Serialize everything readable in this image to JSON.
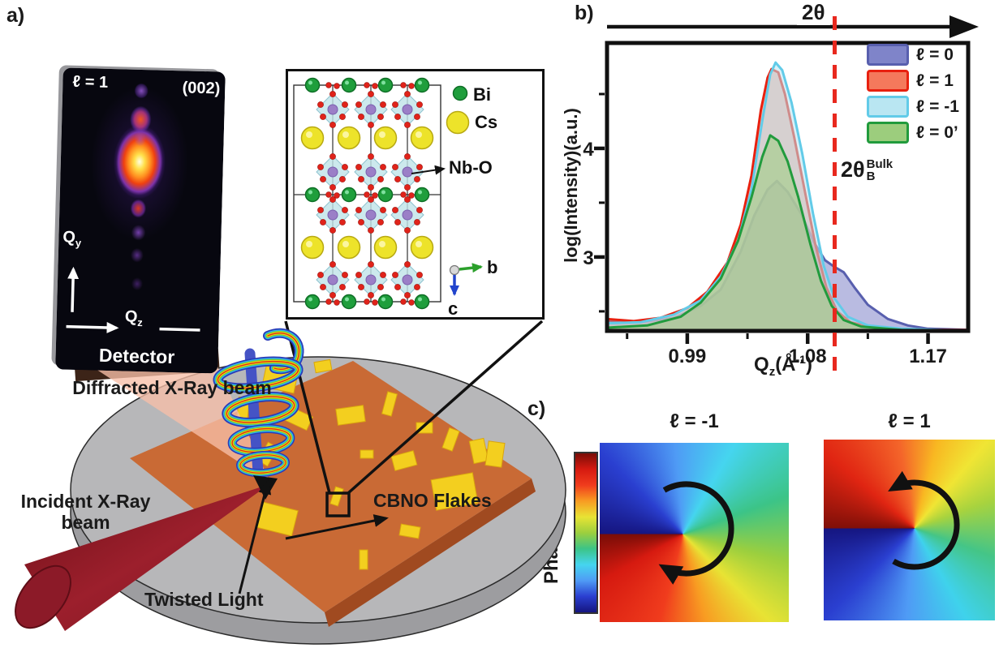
{
  "panels": {
    "a": {
      "label": "a)",
      "detector": {
        "name_label": "Detector",
        "mode_label": "ℓ = 1",
        "reflection_label": "(002)",
        "axis_vertical": {
          "base": "Q",
          "sub": "y"
        },
        "axis_horizontal": {
          "base": "Q",
          "sub": "z"
        }
      },
      "structure_inset": {
        "legend": [
          {
            "label": "Bi",
            "color": "#1f9e3c"
          },
          {
            "label": "Cs",
            "color": "#ede32a"
          }
        ],
        "octahedra_label": "Nb-O",
        "axis_b": "b",
        "axis_c": "c",
        "colors": {
          "octahedron": "#bfe3e8",
          "oxygen": "#e0231a",
          "niobium": "#9b7fc7"
        }
      },
      "labels": {
        "diffracted_beam": "Diffracted X-Ray beam",
        "incident_beam": "Incident X-Ray beam",
        "twisted_light": "Twisted Light",
        "flakes": "CBNO Flakes"
      },
      "colors": {
        "substrate": "#c96a35",
        "flake": "#f3cf1f",
        "stage": "#b7b7b9",
        "incident_beam": "#8c1a28",
        "diffracted_beam": "#f7bfa8"
      }
    },
    "b": {
      "label": "b)"
    },
    "c": {
      "label": "c)",
      "colorbar_label": "Phase(rad)",
      "colorbar_stops": [
        "#7a0d07",
        "#d61a10",
        "#f03c1d",
        "#f89c22",
        "#e8e334",
        "#9ccf3e",
        "#3cc487",
        "#45d5ef",
        "#4f9bf5",
        "#2a3fd0",
        "#151580"
      ],
      "maps": [
        {
          "title": "ℓ = -1",
          "rotation": "clockwise",
          "center": "44% 51%",
          "stops": [
            "#151580 0deg",
            "#2a3fd0 45deg",
            "#4f9bf5 85deg",
            "#45d5ef 120deg",
            "#3cc487 160deg",
            "#9ccf3e 195deg",
            "#e8e334 225deg",
            "#f89c22 255deg",
            "#f03c1d 285deg",
            "#d61a10 330deg",
            "#7a0d07 360deg"
          ]
        },
        {
          "title": "ℓ = 1",
          "rotation": "counterclockwise",
          "center": "53% 49%",
          "stops": [
            "#800f08 0deg",
            "#e02512 40deg",
            "#f4652a 80deg",
            "#f8b822 105deg",
            "#f0e534 130deg",
            "#a8d33e 160deg",
            "#44c587 200deg",
            "#3fd2ec 240deg",
            "#4f9bf5 275deg",
            "#2a3fd0 315deg",
            "#151580 360deg"
          ]
        }
      ]
    }
  },
  "chart_data": {
    "type": "area",
    "title": "",
    "top_axis_label": "2θ",
    "xlabel_parts": {
      "base": "Q",
      "sub": "z",
      "open": "(Å",
      "sup": "-1",
      "close": ")"
    },
    "ylabel": "log(Intensity)(a.u.)",
    "xlim": [
      0.93,
      1.2
    ],
    "ylim": [
      2.32,
      4.97
    ],
    "grid": false,
    "legend_position": "top-right",
    "x_ticks": [
      {
        "value": 0.99,
        "label": "0.99"
      },
      {
        "value": 1.08,
        "label": "1.08"
      },
      {
        "value": 1.17,
        "label": "1.17"
      }
    ],
    "x_minor_ticks": [
      0.945,
      1.035,
      1.125
    ],
    "y_ticks": [
      {
        "value": 3,
        "label": "3"
      },
      {
        "value": 4,
        "label": "4"
      }
    ],
    "y_minor_ticks": [
      2.5,
      3.5,
      4.5
    ],
    "bragg_line": {
      "x": 1.1,
      "color": "#e8281e",
      "label_main": "2θ",
      "label_sub": "B",
      "label_sup": "Bulk"
    },
    "series": [
      {
        "name": "ℓ = 0",
        "stroke": "#585fae",
        "fill": "#7f84c9",
        "points": [
          [
            0.93,
            2.41
          ],
          [
            0.955,
            2.4
          ],
          [
            0.98,
            2.44
          ],
          [
            1.0,
            2.55
          ],
          [
            1.015,
            2.7
          ],
          [
            1.03,
            3.05
          ],
          [
            1.04,
            3.38
          ],
          [
            1.05,
            3.62
          ],
          [
            1.057,
            3.7
          ],
          [
            1.065,
            3.6
          ],
          [
            1.075,
            3.4
          ],
          [
            1.085,
            3.13
          ],
          [
            1.093,
            2.97
          ],
          [
            1.1,
            2.91
          ],
          [
            1.107,
            2.86
          ],
          [
            1.115,
            2.72
          ],
          [
            1.125,
            2.56
          ],
          [
            1.14,
            2.43
          ],
          [
            1.155,
            2.37
          ],
          [
            1.17,
            2.34
          ],
          [
            1.2,
            2.33
          ]
        ]
      },
      {
        "name": "ℓ = 1",
        "stroke": "#e8200f",
        "fill": "#f4795c",
        "points": [
          [
            0.93,
            2.43
          ],
          [
            0.95,
            2.41
          ],
          [
            0.97,
            2.44
          ],
          [
            0.99,
            2.53
          ],
          [
            1.005,
            2.68
          ],
          [
            1.02,
            2.95
          ],
          [
            1.03,
            3.3
          ],
          [
            1.038,
            3.75
          ],
          [
            1.045,
            4.35
          ],
          [
            1.05,
            4.65
          ],
          [
            1.053,
            4.73
          ],
          [
            1.058,
            4.7
          ],
          [
            1.063,
            4.5
          ],
          [
            1.07,
            4.1
          ],
          [
            1.078,
            3.6
          ],
          [
            1.086,
            3.1
          ],
          [
            1.094,
            2.72
          ],
          [
            1.102,
            2.5
          ],
          [
            1.112,
            2.4
          ],
          [
            1.13,
            2.35
          ],
          [
            1.16,
            2.33
          ],
          [
            1.2,
            2.33
          ]
        ]
      },
      {
        "name": "ℓ = -1",
        "stroke": "#62cbe8",
        "fill": "#b9e6f2",
        "points": [
          [
            0.93,
            2.39
          ],
          [
            0.955,
            2.4
          ],
          [
            0.98,
            2.47
          ],
          [
            1.0,
            2.6
          ],
          [
            1.015,
            2.82
          ],
          [
            1.028,
            3.15
          ],
          [
            1.038,
            3.62
          ],
          [
            1.046,
            4.25
          ],
          [
            1.052,
            4.68
          ],
          [
            1.056,
            4.79
          ],
          [
            1.061,
            4.72
          ],
          [
            1.068,
            4.42
          ],
          [
            1.076,
            3.95
          ],
          [
            1.084,
            3.4
          ],
          [
            1.092,
            2.92
          ],
          [
            1.1,
            2.62
          ],
          [
            1.11,
            2.45
          ],
          [
            1.125,
            2.37
          ],
          [
            1.15,
            2.34
          ],
          [
            1.2,
            2.32
          ]
        ]
      },
      {
        "name": "ℓ = 0’",
        "stroke": "#219b3d",
        "fill": "#9ccd7d",
        "points": [
          [
            0.93,
            2.35
          ],
          [
            0.96,
            2.37
          ],
          [
            0.985,
            2.45
          ],
          [
            1.0,
            2.58
          ],
          [
            1.015,
            2.8
          ],
          [
            1.028,
            3.15
          ],
          [
            1.038,
            3.55
          ],
          [
            1.046,
            3.92
          ],
          [
            1.052,
            4.12
          ],
          [
            1.058,
            4.07
          ],
          [
            1.065,
            3.88
          ],
          [
            1.073,
            3.55
          ],
          [
            1.082,
            3.12
          ],
          [
            1.09,
            2.78
          ],
          [
            1.098,
            2.55
          ],
          [
            1.107,
            2.42
          ],
          [
            1.12,
            2.36
          ],
          [
            1.15,
            2.33
          ],
          [
            1.2,
            2.32
          ]
        ]
      }
    ]
  }
}
